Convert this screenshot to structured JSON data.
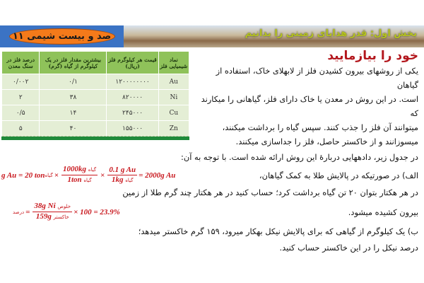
{
  "header": {
    "badge": "صد و بیست شیمی ۱۱",
    "title": "بخش اول: قدر هدایای زمینی را بدانیم"
  },
  "heading": "خود را بیازمایید",
  "intro": [
    "یکی از روشهای بیرون کشیدن فلز از لابهلای خاک، استفاده از گیاهان",
    "است. در این روش در معدن یا خاک دارای فلز، گیاهانی را میکارند که",
    "میتوانند آن فلز را جذب کنند. سپس گیاه را برداشت میکنند،",
    "میسوزانند و از خاکستر حاصل، فلز را جداسازی میکنند."
  ],
  "table": {
    "headers": [
      "نماد شیمیایی فلز",
      "قیمت هر کیلوگرم فلز (ریال)",
      "بیشترین مقدار فلز در یک کیلوگرم از گیاه (گرم)",
      "درصد فلز در سنگ معدن"
    ],
    "rows": [
      [
        "Au",
        "۱۲۰۰۰۰۰۰۰۰",
        "۰/۱",
        "۰/۰۰۲"
      ],
      [
        "Ni",
        "۸۲۰۰۰۰",
        "۳۸",
        "۲"
      ],
      [
        "Cu",
        "۲۴۵۰۰۰",
        "۱۴",
        "۰/۵"
      ],
      [
        "Zn",
        "۱۵۵۰۰۰",
        "۴۰",
        "۵"
      ]
    ]
  },
  "text": {
    "table_intro": "در جدول زیر، دادههایی دربارهٔ این روش ارائه شده است. با توجه به آن:",
    "part_a1": "الف) در صورتیکه در پالایش طلا به کمک گیاهان،",
    "part_a2": "در هر هکتار بتوان ۲۰ تن گیاه برداشت کرد؛ حساب کنید در هر هکتار چند گرم طلا از زمین",
    "part_a3": "بیرون کشیده میشود.",
    "part_b1": "ب) یک کیلوگرم از گیاهی که برای پالایش نیکل بهکار میرود، ۱۵۹ گرم خاکستر میدهد؛",
    "part_b2": "درصد نیکل را در این خاکستر حساب کنید."
  },
  "formula_a": {
    "lhs": "g Au = 20 ton",
    "plant": "گیاه",
    "n1": "1000kg",
    "d1": "1ton",
    "n2": "0.1 g Au",
    "d2": "1kg",
    "result": "= 2000g Au"
  },
  "formula_b": {
    "label": "درصد",
    "pure": "خلوص",
    "num": "38g Ni",
    "den": "159g",
    "ash": "خاکستر",
    "rest": "× 100 = 23.9%"
  },
  "colors": {
    "accent": "#c8171d",
    "table_header": "#8fc25a",
    "badge": "#f47a1a"
  }
}
